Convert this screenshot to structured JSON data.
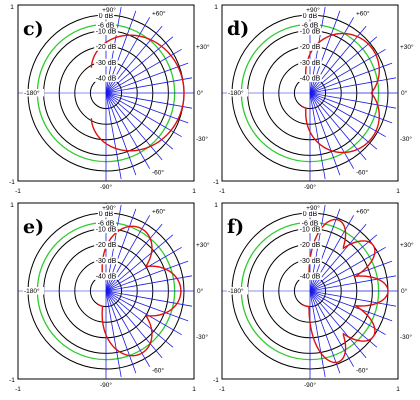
{
  "colors": {
    "ring": "#000000",
    "reference_ring": "#2ecc2e",
    "grid_lines": "#1a1ae6",
    "pattern": "#dd1111",
    "frame": "#000000"
  },
  "chart_data": [
    {
      "type": "polar",
      "panel": "c)",
      "rings_db": [
        0,
        -6,
        -10,
        -20,
        -30,
        -40
      ],
      "ring_labels": [
        "0 dB",
        "-6 dB",
        "-10 dB",
        "-20 dB",
        "-30 dB",
        "-40 dB"
      ],
      "highlighted_ring_db": -6,
      "angle_labels": [
        "+90°",
        "+60°",
        "+30°",
        "0°",
        "-30°",
        "-60°",
        "-90°",
        "-180°"
      ],
      "x_ticks": [
        "-1",
        "1"
      ],
      "y_ticks": [
        "1",
        "-1"
      ],
      "xlim": [
        -1,
        1
      ],
      "ylim": [
        -1,
        1
      ],
      "pattern_lobes": [
        {
          "center_deg": 0,
          "peak_db": 0,
          "half_width_deg": 115
        }
      ]
    },
    {
      "type": "polar",
      "panel": "d)",
      "rings_db": [
        0,
        -6,
        -10,
        -20,
        -30,
        -40
      ],
      "ring_labels": [
        "0 dB",
        "-6 dB",
        "-10 dB",
        "-20 dB",
        "-30 dB",
        "-40 dB"
      ],
      "highlighted_ring_db": -6,
      "angle_labels": [
        "+90°",
        "+60°",
        "+30°",
        "0°",
        "-30°",
        "-60°",
        "-90°",
        "-180°"
      ],
      "x_ticks": [
        "-1",
        "1"
      ],
      "y_ticks": [
        "1",
        "-1"
      ],
      "xlim": [
        -1,
        1
      ],
      "ylim": [
        -1,
        1
      ],
      "pattern_lobes": [
        {
          "center_deg": 35,
          "peak_db": -1,
          "half_width_deg": 60
        },
        {
          "center_deg": -35,
          "peak_db": -1,
          "half_width_deg": 60
        }
      ]
    },
    {
      "type": "polar",
      "panel": "e)",
      "rings_db": [
        0,
        -6,
        -10,
        -20,
        -30,
        -40
      ],
      "ring_labels": [
        "0 dB",
        "-6 dB",
        "-10 dB",
        "-20 dB",
        "-30 dB",
        "-40 dB"
      ],
      "highlighted_ring_db": -6,
      "angle_labels": [
        "+90°",
        "+60°",
        "+30°",
        "0°",
        "-30°",
        "-60°",
        "-90°",
        "-180°"
      ],
      "x_ticks": [
        "-1",
        "1"
      ],
      "y_ticks": [
        "1",
        "-1"
      ],
      "xlim": [
        -1,
        1
      ],
      "ylim": [
        -1,
        1
      ],
      "pattern_lobes": [
        {
          "center_deg": 0,
          "peak_db": -2,
          "half_width_deg": 40
        },
        {
          "center_deg": 60,
          "peak_db": -4,
          "half_width_deg": 38
        },
        {
          "center_deg": -60,
          "peak_db": -4,
          "half_width_deg": 38
        }
      ]
    },
    {
      "type": "polar",
      "panel": "f)",
      "rings_db": [
        0,
        -6,
        -10,
        -20,
        -30,
        -40
      ],
      "ring_labels": [
        "0 dB",
        "-6 dB",
        "-10 dB",
        "-20 dB",
        "-30 dB",
        "-40 dB"
      ],
      "highlighted_ring_db": -6,
      "angle_labels": [
        "+90°",
        "+60°",
        "+30°",
        "0°",
        "-30°",
        "-60°",
        "-90°",
        "-180°"
      ],
      "x_ticks": [
        "-1",
        "1"
      ],
      "y_ticks": [
        "1",
        "-1"
      ],
      "xlim": [
        -1,
        1
      ],
      "ylim": [
        -1,
        1
      ],
      "pattern_lobes": [
        {
          "center_deg": 0,
          "peak_db": 0,
          "half_width_deg": 22
        },
        {
          "center_deg": 36,
          "peak_db": 0,
          "half_width_deg": 22
        },
        {
          "center_deg": -36,
          "peak_db": 0,
          "half_width_deg": 22
        },
        {
          "center_deg": 68,
          "peak_db": -1,
          "half_width_deg": 22
        },
        {
          "center_deg": -68,
          "peak_db": -1,
          "half_width_deg": 22
        }
      ]
    }
  ]
}
